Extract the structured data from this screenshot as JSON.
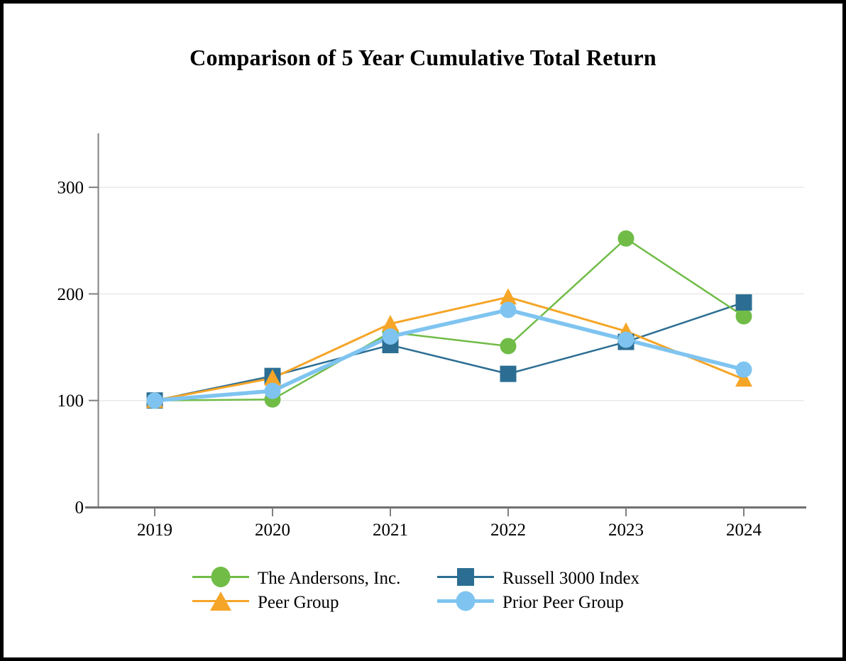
{
  "header": {
    "title": "Comparison of 5 Year Cumulative Total Return"
  },
  "chart_data": {
    "type": "line",
    "title": "Comparison of 5 Year Cumulative Total Return",
    "x_labels": [
      "2019",
      "2020",
      "2021",
      "2022",
      "2023",
      "2024"
    ],
    "yticks": [
      0,
      100,
      200,
      300
    ],
    "ylim": [
      0,
      350
    ],
    "grid": "horizontal-light-gray",
    "legend_position": "bottom",
    "axis_color": "#808080",
    "gridline_color": "#e9e9e9",
    "series": [
      {
        "name": "The Andersons, Inc.",
        "marker": "circle",
        "color": "#70BC47",
        "line_width": 2.5,
        "values": [
          100,
          101,
          164,
          151,
          252,
          179
        ]
      },
      {
        "name": "Russell 3000 Index",
        "marker": "square",
        "color": "#2C6E93",
        "line_width": 2.5,
        "values": [
          100,
          123,
          152,
          125,
          155,
          192
        ]
      },
      {
        "name": "Peer Group",
        "marker": "triangle",
        "color": "#F5A527",
        "line_width": 3,
        "values": [
          100,
          121,
          172,
          197,
          165,
          120
        ]
      },
      {
        "name": "Prior Peer Group",
        "marker": "circle",
        "color": "#7FC4F0",
        "line_width": 5.5,
        "values": [
          100,
          109,
          160,
          185,
          157,
          129
        ]
      }
    ]
  }
}
